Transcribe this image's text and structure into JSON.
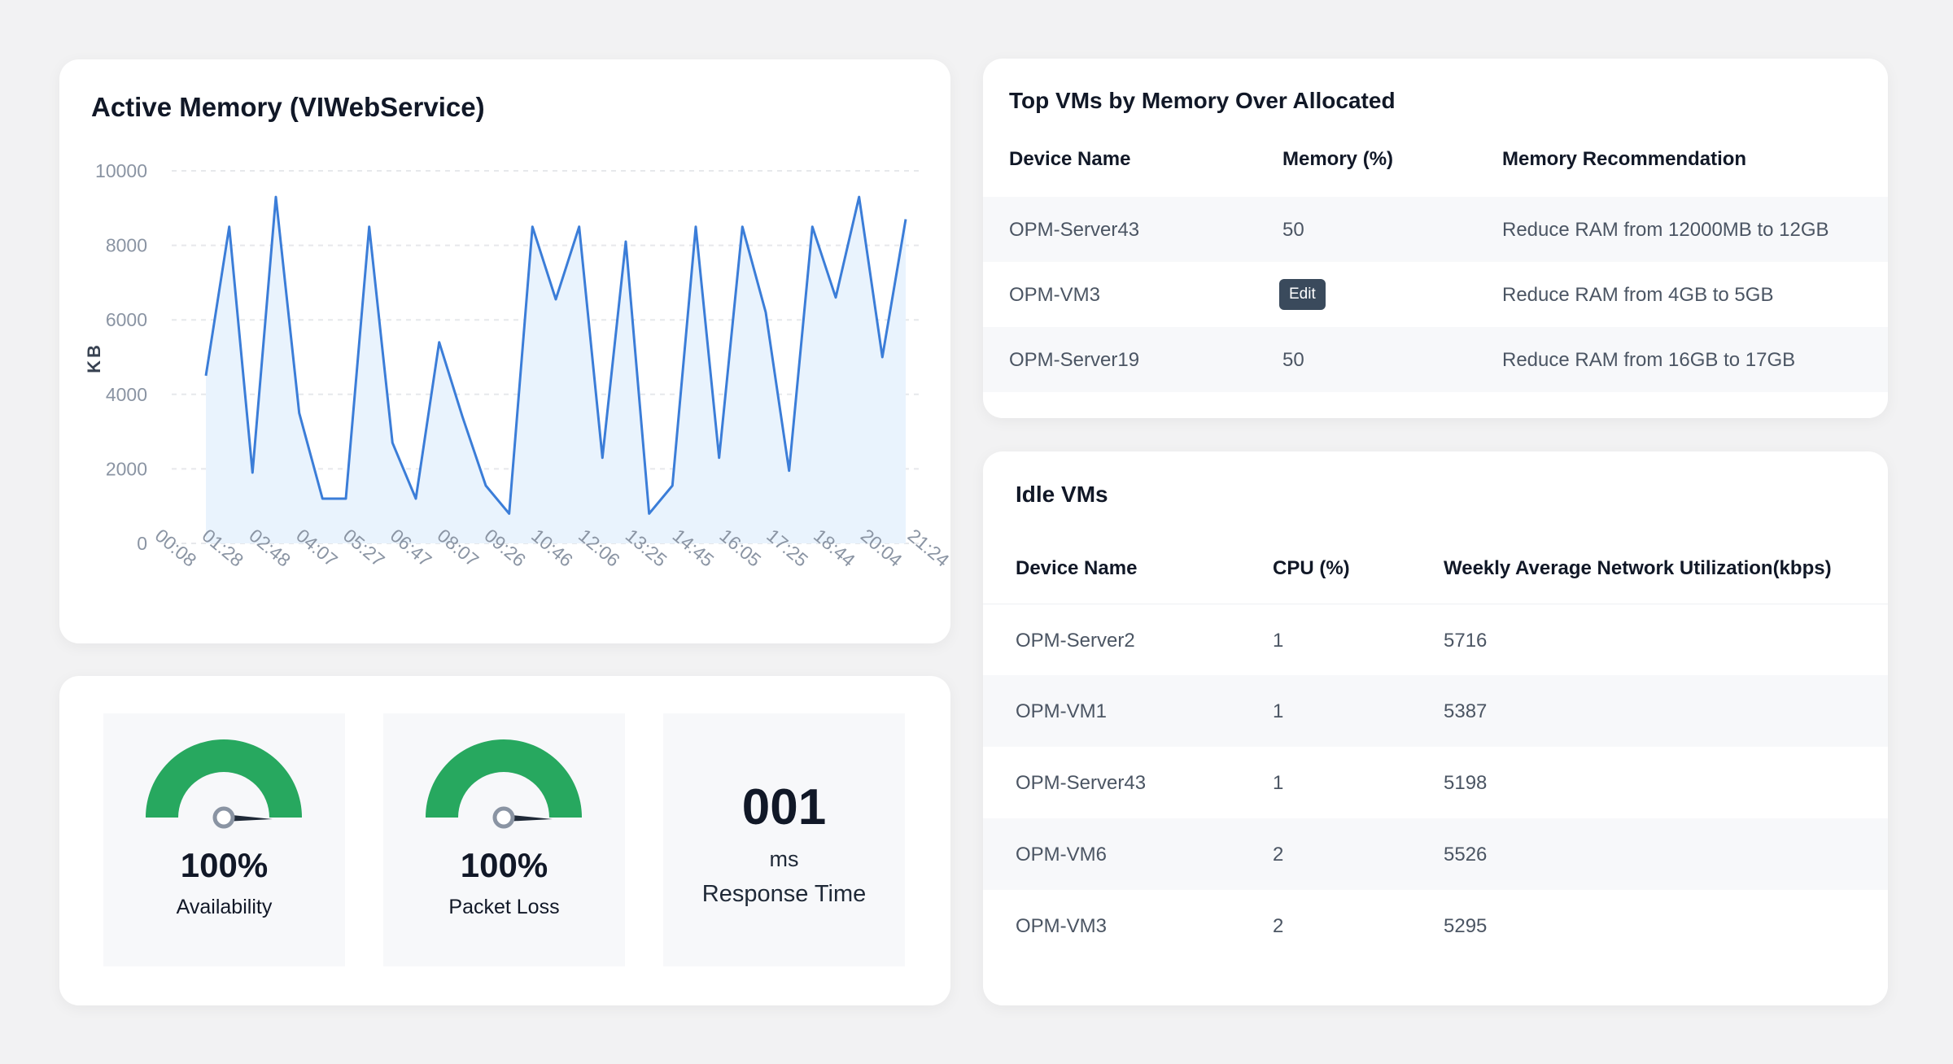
{
  "chart": {
    "title": "Active Memory (VIWebService)"
  },
  "chart_data": {
    "type": "area",
    "ylabel": "KB",
    "ylim": [
      0,
      10000
    ],
    "yticks": [
      0,
      2000,
      4000,
      6000,
      8000,
      10000
    ],
    "xticks": [
      "00:08",
      "01:28",
      "02:48",
      "04:07",
      "05:27",
      "06:47",
      "08:07",
      "09:26",
      "10:46",
      "12:06",
      "13:25",
      "14:45",
      "16:05",
      "17:25",
      "18:44",
      "20:04",
      "21:24"
    ],
    "values": [
      4500,
      8500,
      1900,
      9300,
      3500,
      1200,
      1200,
      8500,
      2700,
      1200,
      5400,
      3400,
      1550,
      800,
      8500,
      6550,
      8500,
      2300,
      8100,
      800,
      1550,
      8500,
      2300,
      8500,
      6200,
      1950,
      8500,
      6600,
      9300,
      5000,
      8700
    ],
    "line_color": "#3b7dd8",
    "fill_color": "#e9f3fd",
    "grid": true
  },
  "metrics": {
    "availability": {
      "value": "100%",
      "label": "Availability",
      "fraction": 1.0
    },
    "packet_loss": {
      "value": "100%",
      "label": "Packet Loss",
      "fraction": 1.0
    },
    "response_time": {
      "value": "001",
      "unit": "ms",
      "label": "Response Time"
    },
    "gauge_color": "#27a85f"
  },
  "top_vms": {
    "title": "Top VMs by Memory Over Allocated",
    "headers": [
      "Device Name",
      "Memory (%)",
      "Memory Recommendation"
    ],
    "rows": [
      {
        "device": "OPM-Server43",
        "memory": "50",
        "recommendation": "Reduce RAM from 12000MB to 12GB"
      },
      {
        "device": "OPM-VM3",
        "memory": "",
        "badge": "Edit",
        "recommendation": "Reduce RAM from 4GB to 5GB"
      },
      {
        "device": "OPM-Server19",
        "memory": "50",
        "recommendation": "Reduce RAM from 16GB to 17GB"
      }
    ]
  },
  "idle_vms": {
    "title": "Idle VMs",
    "headers": [
      "Device Name",
      "CPU (%)",
      "Weekly Average Network Utilization(kbps)"
    ],
    "rows": [
      {
        "device": "OPM-Server2",
        "cpu": "1",
        "network": "5716"
      },
      {
        "device": "OPM-VM1",
        "cpu": "1",
        "network": "5387"
      },
      {
        "device": "OPM-Server43",
        "cpu": "1",
        "network": "5198"
      },
      {
        "device": "OPM-VM6",
        "cpu": "2",
        "network": "5526"
      },
      {
        "device": "OPM-VM3",
        "cpu": "2",
        "network": "5295"
      }
    ]
  }
}
